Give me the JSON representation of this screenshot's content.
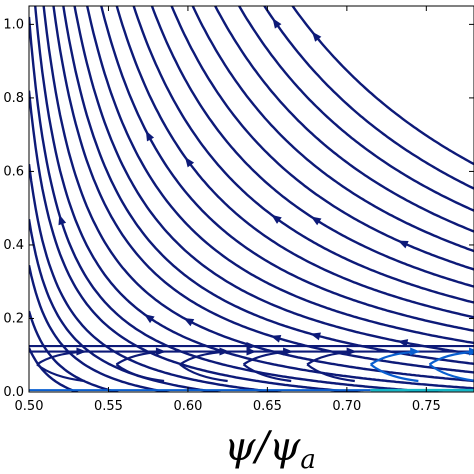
{
  "chart_data": {
    "type": "streamplot",
    "xlabel": "ψ/ψa",
    "xlim": [
      0.5,
      0.78
    ],
    "ylim": [
      0.0,
      1.05
    ],
    "x_ticks": [
      0.5,
      0.55,
      0.6,
      0.65,
      0.7,
      0.75
    ],
    "x_tick_labels": [
      "0.50",
      "0.55",
      "0.60",
      "0.65",
      "0.70",
      "0.75"
    ],
    "y_ticks": [
      0.0,
      0.2,
      0.4,
      0.6,
      0.8,
      1.0
    ],
    "y_tick_labels": [
      "0.0",
      "0.2",
      "0.4",
      "0.6",
      "0.8",
      "1.0"
    ],
    "grid": false,
    "colors": {
      "stream_high": "#0d1a78",
      "stream_low": "#0a5fd0",
      "stream_cyan": "#13b7c6"
    },
    "upper_family": {
      "description": "curves y = c/(x-0.48) - 0.08 flowing toward larger y (upper left)",
      "c_values": [
        0.004,
        0.006,
        0.0085,
        0.011,
        0.014,
        0.018,
        0.022,
        0.027,
        0.033,
        0.04,
        0.047,
        0.055,
        0.064,
        0.074,
        0.085,
        0.097,
        0.11,
        0.124,
        0.139,
        0.155,
        0.172,
        0.19,
        0.21
      ]
    },
    "lower_band": {
      "lines_y": [
        0.125,
        0.11
      ],
      "chevron_row_y": 0.075,
      "chevron_x_starts": [
        0.505,
        0.555,
        0.595,
        0.635,
        0.675,
        0.715,
        0.752
      ],
      "bottom_line_y": 0.005
    }
  }
}
